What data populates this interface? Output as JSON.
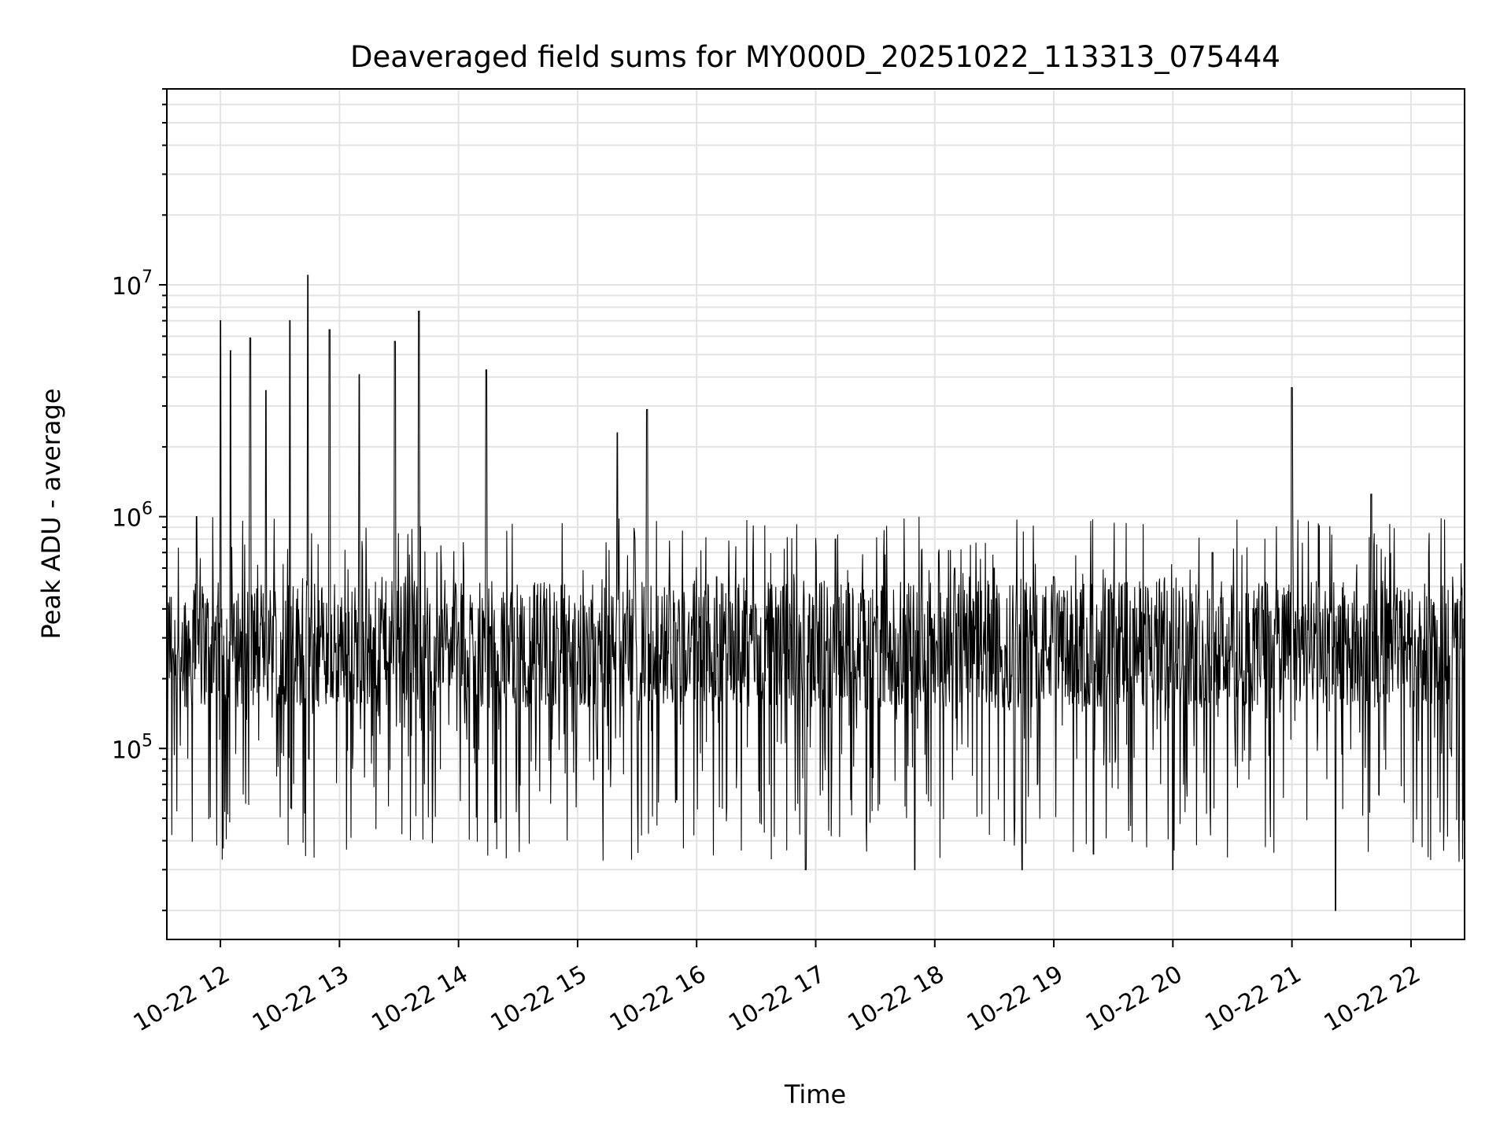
{
  "chart_data": {
    "type": "line",
    "title": "Deaveraged field sums for MY000D_20251022_113313_075444",
    "xlabel": "Time",
    "ylabel": "Peak ADU - average",
    "x_scale": "time",
    "y_scale": "log",
    "xlim": [
      "2025-10-22 11:33",
      "2025-10-22 22:27"
    ],
    "ylim": [
      15000,
      70000000
    ],
    "x_ticks": [
      "10-22 12",
      "10-22 13",
      "10-22 14",
      "10-22 15",
      "10-22 16",
      "10-22 17",
      "10-22 18",
      "10-22 19",
      "10-22 20",
      "10-22 21",
      "10-22 22"
    ],
    "y_ticks": [
      {
        "base": "10",
        "exp": "5",
        "value": 100000
      },
      {
        "base": "10",
        "exp": "6",
        "value": 1000000
      },
      {
        "base": "10",
        "exp": "7",
        "value": 10000000
      }
    ],
    "grid": true,
    "line_color": "#000000",
    "series": [
      {
        "x": [
          "2025-10-22 11:33",
          "2025-10-22 11:48",
          "2025-10-22 12:00",
          "2025-10-22 12:05",
          "2025-10-22 12:15",
          "2025-10-22 12:23",
          "2025-10-22 12:35",
          "2025-10-22 12:44",
          "2025-10-22 12:55",
          "2025-10-22 13:10",
          "2025-10-22 13:28",
          "2025-10-22 13:40",
          "2025-10-22 14:00",
          "2025-10-22 14:14",
          "2025-10-22 14:30",
          "2025-10-22 14:50",
          "2025-10-22 15:10",
          "2025-10-22 15:20",
          "2025-10-22 15:35",
          "2025-10-22 15:50",
          "2025-10-22 16:10",
          "2025-10-22 16:30",
          "2025-10-22 16:55",
          "2025-10-22 17:10",
          "2025-10-22 17:30",
          "2025-10-22 17:50",
          "2025-10-22 18:10",
          "2025-10-22 18:30",
          "2025-10-22 18:44",
          "2025-10-22 19:00",
          "2025-10-22 19:20",
          "2025-10-22 19:40",
          "2025-10-22 20:00",
          "2025-10-22 20:20",
          "2025-10-22 20:45",
          "2025-10-22 21:00",
          "2025-10-22 21:15",
          "2025-10-22 21:22",
          "2025-10-22 21:40",
          "2025-10-22 22:00",
          "2025-10-22 22:20",
          "2025-10-22 22:27"
        ],
        "values": [
          60000,
          1000000,
          7000000,
          5200000,
          5900000,
          3500000,
          7000000,
          11000000,
          6400000,
          4100000,
          5700000,
          7700000,
          350000,
          4300000,
          300000,
          330000,
          90000,
          2300000,
          2900000,
          60000,
          550000,
          400000,
          30000,
          800000,
          350000,
          30000,
          600000,
          600000,
          30000,
          550000,
          35000,
          400000,
          30000,
          700000,
          500000,
          3600000,
          200000,
          20000,
          1250000,
          300000,
          100000,
          250000
        ]
      }
    ]
  }
}
